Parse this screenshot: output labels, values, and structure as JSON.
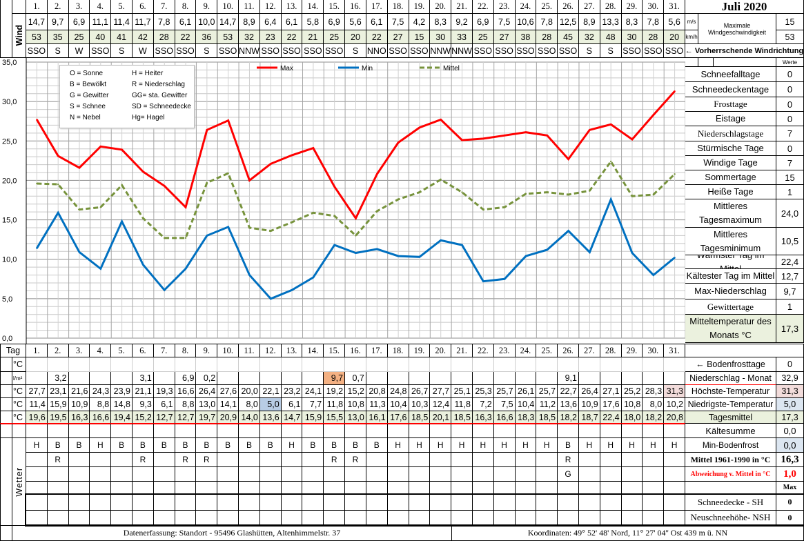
{
  "title": "Juli 2020",
  "days": [
    "1.",
    "2.",
    "3.",
    "4.",
    "5.",
    "6.",
    "7.",
    "8.",
    "9.",
    "10.",
    "11.",
    "12.",
    "13.",
    "14.",
    "15.",
    "16.",
    "17.",
    "18.",
    "19.",
    "20.",
    "21.",
    "22.",
    "23.",
    "24.",
    "25.",
    "26.",
    "27.",
    "28.",
    "29.",
    "30.",
    "31."
  ],
  "wind": {
    "label": "Wind",
    "ms": [
      "14,7",
      "9,7",
      "6,9",
      "11,1",
      "11,4",
      "11,7",
      "7,8",
      "6,1",
      "10,0",
      "14,7",
      "8,9",
      "6,4",
      "6,1",
      "5,8",
      "6,9",
      "5,6",
      "6,1",
      "7,5",
      "4,2",
      "8,3",
      "9,2",
      "6,9",
      "7,5",
      "10,6",
      "7,8",
      "12,5",
      "8,9",
      "13,3",
      "8,3",
      "7,8",
      "5,6"
    ],
    "kmh": [
      "53",
      "35",
      "25",
      "40",
      "41",
      "42",
      "28",
      "22",
      "36",
      "53",
      "32",
      "23",
      "22",
      "21",
      "25",
      "20",
      "22",
      "27",
      "15",
      "30",
      "33",
      "25",
      "27",
      "38",
      "28",
      "45",
      "32",
      "48",
      "30",
      "28",
      "20"
    ],
    "dir": [
      "SSO",
      "S",
      "W",
      "SSO",
      "S",
      "W",
      "SSO",
      "SSO",
      "S",
      "SSO",
      "NNW",
      "SSO",
      "SSO",
      "SSO",
      "SSO",
      "S",
      "NNO",
      "SSO",
      "SSO",
      "NNW",
      "NNW",
      "SSO",
      "SSO",
      "SSO",
      "SSO",
      "SSO",
      "S",
      "S",
      "SSO",
      "SSO",
      "SSO"
    ],
    "unit_ms": "m/s",
    "unit_kmh": "km/h",
    "max_label_1": "Maximale",
    "max_label_2": "Windgeschwindigkeit",
    "max_ms": "15",
    "max_kmh": "53",
    "dir_note": "← Vorherrschende Windrichtung"
  },
  "chart_data": {
    "type": "line",
    "x": [
      1,
      2,
      3,
      4,
      5,
      6,
      7,
      8,
      9,
      10,
      11,
      12,
      13,
      14,
      15,
      16,
      17,
      18,
      19,
      20,
      21,
      22,
      23,
      24,
      25,
      26,
      27,
      28,
      29,
      30,
      31
    ],
    "ylim": [
      0,
      35
    ],
    "yticks": [
      0,
      5,
      10,
      15,
      20,
      25,
      30,
      35
    ],
    "ytick_labels": [
      "0,0",
      "5,0",
      "10,0",
      "15,0",
      "20,0",
      "25,0",
      "30,0",
      "35,0"
    ],
    "grid": true,
    "legend_position": "top",
    "series": [
      {
        "name": "Max",
        "color": "#ff0000",
        "dash": false,
        "values": [
          27.7,
          23.1,
          21.6,
          24.3,
          23.9,
          21.1,
          19.3,
          16.6,
          26.4,
          27.6,
          20.0,
          22.1,
          23.2,
          24.1,
          19.2,
          15.2,
          20.8,
          24.8,
          26.7,
          27.7,
          25.1,
          25.3,
          25.7,
          26.1,
          25.7,
          22.7,
          26.4,
          27.1,
          25.2,
          28.3,
          31.3
        ]
      },
      {
        "name": "Min",
        "color": "#0070c0",
        "dash": false,
        "values": [
          11.4,
          15.9,
          10.9,
          8.8,
          14.8,
          9.3,
          6.1,
          8.8,
          13.0,
          14.1,
          8.0,
          5.0,
          6.1,
          7.7,
          11.8,
          10.8,
          11.3,
          10.4,
          10.3,
          12.4,
          11.8,
          7.2,
          7.5,
          10.4,
          11.2,
          13.6,
          10.9,
          17.6,
          10.8,
          8.0,
          10.2
        ]
      },
      {
        "name": "Mittel",
        "color": "#77933c",
        "dash": true,
        "values": [
          19.6,
          19.5,
          16.3,
          16.6,
          19.4,
          15.2,
          12.7,
          12.7,
          19.7,
          20.9,
          14.0,
          13.6,
          14.7,
          15.9,
          15.5,
          13.0,
          16.1,
          17.6,
          18.5,
          20.1,
          18.5,
          16.3,
          16.6,
          18.3,
          18.5,
          18.2,
          18.7,
          22.4,
          18.0,
          18.2,
          20.8
        ]
      }
    ]
  },
  "legend_codes": [
    "O = Sonne",
    "H = Heiter",
    "B = Bewölkt",
    "R = Niederschlag",
    "G = Gewitter",
    "GG= sta. Gewitter",
    "S = Schnee",
    "SD = Schneedecke",
    "N = Nebel",
    "Hg= Hagel"
  ],
  "stats": {
    "header": "Werte",
    "rows": [
      {
        "label": "Schneefalltage",
        "value": "0"
      },
      {
        "label": "Schneedeckentage",
        "value": "0"
      },
      {
        "label": "Frosttage",
        "value": "0"
      },
      {
        "label": "Eistage",
        "value": "0"
      },
      {
        "label": "Niederschlagstage",
        "value": "7"
      },
      {
        "label": "Stürmische Tage",
        "value": "0"
      },
      {
        "label": "Windige Tage",
        "value": "7"
      },
      {
        "label": "Sommertage",
        "value": "15"
      },
      {
        "label": "Heiße Tage",
        "value": "1"
      },
      {
        "label": "Mittleres Tagesmaximum",
        "value": "24,0"
      },
      {
        "label": "Mittleres Tagesminimum",
        "value": "10,5"
      },
      {
        "label": "Wärmster Tag im Mittel",
        "value": "22,4"
      },
      {
        "label": "Kältester Tag im Mittel",
        "value": "12,7"
      },
      {
        "label": "Max-Niederschlag",
        "value": "9,7"
      },
      {
        "label": "Gewittertage",
        "value": "1"
      },
      {
        "label": "Mitteltemperatur des Monats °C",
        "value": "17,3"
      }
    ]
  },
  "bottom": {
    "tag_label": "Tag",
    "rows": [
      {
        "unit": "°C",
        "values": [
          "",
          "",
          "",
          "",
          "",
          "",
          "",
          "",
          "",
          "",
          "",
          "",
          "",
          "",
          "",
          "",
          "",
          "",
          "",
          "",
          "",
          "",
          "",
          "",
          "",
          "",
          "",
          "",
          "",
          "",
          ""
        ],
        "label": "← Bodenfrosttage",
        "value": "0"
      },
      {
        "unit": "l/m²",
        "values": [
          "",
          "3,2",
          "",
          "",
          "",
          "3,1",
          "",
          "6,9",
          "0,2",
          "",
          "",
          "",
          "",
          "",
          "9,7",
          "0,7",
          "",
          "",
          "",
          "",
          "",
          "",
          "",
          "",
          "",
          "9,1",
          "",
          "",
          "",
          "",
          ""
        ],
        "label": "Niederschlag - Monat",
        "value": "32,9"
      },
      {
        "unit": "°C",
        "values": [
          "27,7",
          "23,1",
          "21,6",
          "24,3",
          "23,9",
          "21,1",
          "19,3",
          "16,6",
          "26,4",
          "27,6",
          "20,0",
          "22,1",
          "23,2",
          "24,1",
          "19,2",
          "15,2",
          "20,8",
          "24,8",
          "26,7",
          "27,7",
          "25,1",
          "25,3",
          "25,7",
          "26,1",
          "25,7",
          "22,7",
          "26,4",
          "27,1",
          "25,2",
          "28,3",
          "31,3"
        ],
        "label": "Höchste-Temperatur",
        "value": "31,3"
      },
      {
        "unit": "°C",
        "values": [
          "11,4",
          "15,9",
          "10,9",
          "8,8",
          "14,8",
          "9,3",
          "6,1",
          "8,8",
          "13,0",
          "14,1",
          "8,0",
          "5,0",
          "6,1",
          "7,7",
          "11,8",
          "10,8",
          "11,3",
          "10,4",
          "10,3",
          "12,4",
          "11,8",
          "7,2",
          "7,5",
          "10,4",
          "11,2",
          "13,6",
          "10,9",
          "17,6",
          "10,8",
          "8,0",
          "10,2"
        ],
        "label": "Niedrigste-Temperatur",
        "value": "5,0"
      },
      {
        "unit": "°C",
        "values": [
          "19,6",
          "19,5",
          "16,3",
          "16,6",
          "19,4",
          "15,2",
          "12,7",
          "12,7",
          "19,7",
          "20,9",
          "14,0",
          "13,6",
          "14,7",
          "15,9",
          "15,5",
          "13,0",
          "16,1",
          "17,6",
          "18,5",
          "20,1",
          "18,5",
          "16,3",
          "16,6",
          "18,3",
          "18,5",
          "18,2",
          "18,7",
          "22,4",
          "18,0",
          "18,2",
          "20,8"
        ],
        "label": "Tagesmittel",
        "value": "17,3"
      }
    ],
    "kaeltesumme": {
      "label": "Kältesumme",
      "value": "0,0"
    }
  },
  "weather": {
    "label": "Wetter",
    "rows": [
      {
        "values": [
          "H",
          "B",
          "B",
          "H",
          "B",
          "B",
          "B",
          "B",
          "B",
          "B",
          "B",
          "B",
          "H",
          "B",
          "B",
          "B",
          "B",
          "H",
          "H",
          "H",
          "H",
          "H",
          "H",
          "H",
          "H",
          "B",
          "H",
          "H",
          "H",
          "H",
          "H"
        ],
        "label": "Min-Bodenfrost",
        "value": "0,0"
      },
      {
        "values": [
          "",
          "R",
          "",
          "",
          "",
          "R",
          "",
          "R",
          "R",
          "",
          "",
          "",
          "",
          "",
          "R",
          "R",
          "",
          "",
          "",
          "",
          "",
          "",
          "",
          "",
          "",
          "R",
          "",
          "",
          "",
          "",
          ""
        ],
        "label": "Mittel 1961-1990 in °C",
        "value": "16,3"
      },
      {
        "values": [
          "",
          "",
          "",
          "",
          "",
          "",
          "",
          "",
          "",
          "",
          "",
          "",
          "",
          "",
          "",
          "",
          "",
          "",
          "",
          "",
          "",
          "",
          "",
          "",
          "",
          "G",
          "",
          "",
          "",
          "",
          ""
        ],
        "label": "Abweichung v. Mittel in °C",
        "value": "1,0"
      },
      {
        "values": [
          "",
          "",
          "",
          "",
          "",
          "",
          "",
          "",
          "",
          "",
          "",
          "",
          "",
          "",
          "",
          "",
          "",
          "",
          "",
          "",
          "",
          "",
          "",
          "",
          "",
          "",
          "",
          "",
          "",
          "",
          ""
        ],
        "label": "",
        "value": "Max"
      }
    ],
    "snow_rows": [
      {
        "label": "Schneedecke -   SH",
        "value": "0"
      },
      {
        "label": "Neuschneehöhe- NSH",
        "value": "0"
      }
    ]
  },
  "footer": {
    "location": "Datenerfassung:  Standort -  95496  Glashütten, Altenhimmelstr. 37",
    "coordinates": "Koordinaten:  49° 52' 48' Nord,   11° 27' 04'' Ost   439 m ü. NN"
  },
  "colors": {
    "max": "#ff0000",
    "min": "#0070c0",
    "mittel": "#77933c",
    "highlight_precip": "#f4b183",
    "highlight_high": "#f2dcdb",
    "highlight_low": "#b8cce4",
    "mean_row": "#ebf1de"
  }
}
